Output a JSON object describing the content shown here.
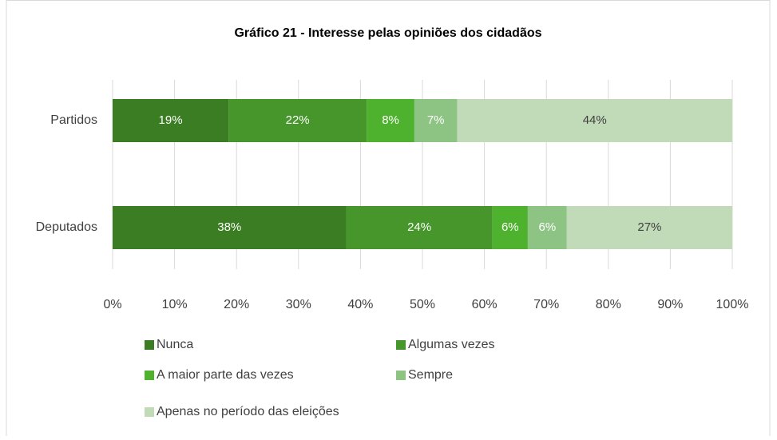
{
  "chart_data": {
    "type": "stacked_bar_horizontal",
    "title": "Gráfico 21 - Interesse pelas opiniões dos cidadãos",
    "categories": [
      "Partidos",
      "Deputados"
    ],
    "series": [
      {
        "name": "Nunca",
        "color": "#3b7d23",
        "values": [
          18.7,
          37.7
        ],
        "value_labels": [
          "19%",
          "38%"
        ]
      },
      {
        "name": "Algumas vezes",
        "color": "#46962b",
        "values": [
          22.3,
          23.6
        ],
        "value_labels": [
          "22%",
          "24%"
        ]
      },
      {
        "name": "A maior parte das vezes",
        "color": "#4eb22e",
        "values": [
          7.7,
          5.7
        ],
        "value_labels": [
          "8%",
          "6%"
        ]
      },
      {
        "name": "Sempre",
        "color": "#8ec483",
        "values": [
          6.9,
          6.3
        ],
        "value_labels": [
          "7%",
          "6%"
        ]
      },
      {
        "name": "Apenas no período das eleições",
        "color": "#c1dab8",
        "values": [
          44.4,
          26.7
        ],
        "value_labels": [
          "44%",
          "27%"
        ]
      }
    ],
    "xlim": [
      0,
      100
    ],
    "xticks": [
      {
        "value": 0,
        "label": "0%"
      },
      {
        "value": 10,
        "label": "10%"
      },
      {
        "value": 20,
        "label": "20%"
      },
      {
        "value": 30,
        "label": "30%"
      },
      {
        "value": 40,
        "label": "40%"
      },
      {
        "value": 50,
        "label": "50%"
      },
      {
        "value": 60,
        "label": "60%"
      },
      {
        "value": 70,
        "label": "70%"
      },
      {
        "value": 80,
        "label": "80%"
      },
      {
        "value": 90,
        "label": "90%"
      },
      {
        "value": 100,
        "label": "100%"
      }
    ],
    "grid": true
  }
}
